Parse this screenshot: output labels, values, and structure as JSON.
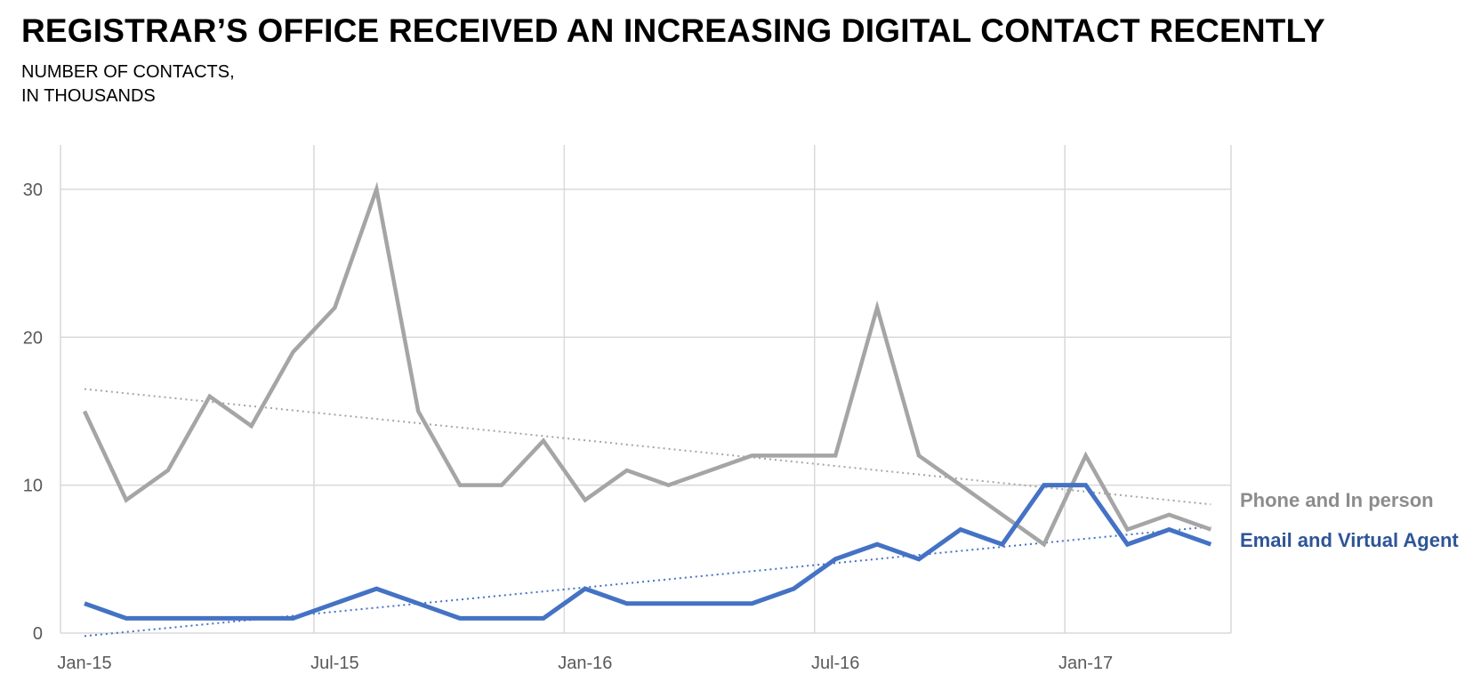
{
  "chart_data": {
    "type": "line",
    "title": "REGISTRAR’S OFFICE RECEIVED AN INCREASING DIGITAL CONTACT RECENTLY",
    "subtitle": [
      "NUMBER OF CONTACTS,",
      "IN THOUSANDS"
    ],
    "xlabel": "",
    "ylabel": "",
    "x": [
      "Jan-15",
      "Feb-15",
      "Mar-15",
      "Apr-15",
      "May-15",
      "Jun-15",
      "Jul-15",
      "Aug-15",
      "Sep-15",
      "Oct-15",
      "Nov-15",
      "Dec-15",
      "Jan-16",
      "Feb-16",
      "Mar-16",
      "Apr-16",
      "May-16",
      "Jun-16",
      "Jul-16",
      "Aug-16",
      "Sep-16",
      "Oct-16",
      "Nov-16",
      "Dec-16",
      "Jan-17",
      "Feb-17",
      "Mar-17",
      "Apr-17"
    ],
    "x_tick_labels": [
      "Jan-15",
      "Jul-15",
      "Jan-16",
      "Jul-16",
      "Jan-17"
    ],
    "y_tick_labels": [
      "0",
      "10",
      "20",
      "30"
    ],
    "ylim": [
      0,
      33
    ],
    "grid": true,
    "legend_placement": "right, at line ends",
    "series": [
      {
        "name": "Phone and In person",
        "color": "#A5A5A5",
        "values": [
          15,
          9,
          11,
          16,
          14,
          19,
          22,
          30,
          15,
          10,
          10,
          13,
          9,
          11,
          10,
          11,
          12,
          12,
          12,
          22,
          12,
          10,
          8,
          6,
          12,
          7,
          8,
          7
        ],
        "trendline": [
          16.5,
          8.7
        ]
      },
      {
        "name": "Email and Virtual Agent",
        "color": "#4472C4",
        "values": [
          2,
          1,
          1,
          1,
          1,
          1,
          2,
          3,
          2,
          1,
          1,
          1,
          3,
          2,
          2,
          2,
          2,
          3,
          5,
          6,
          5,
          7,
          6,
          10,
          10,
          6,
          7,
          6
        ],
        "trendline": [
          -0.2,
          7.2
        ]
      }
    ],
    "label_colors": {
      "phone": "#8C8C8C",
      "email": "#2F5597"
    },
    "grid_color": "#D9D9D9"
  }
}
